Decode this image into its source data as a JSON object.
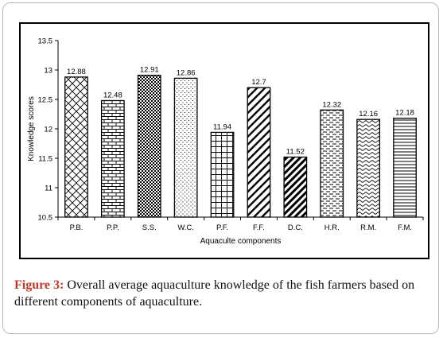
{
  "chart_data": {
    "type": "bar",
    "title": "",
    "xlabel": "Aquaculte components",
    "ylabel": "Knowledge scores",
    "ylim": [
      10.5,
      13.5
    ],
    "yticks": [
      "10.5",
      "11",
      "11.5",
      "12",
      "12.5",
      "13",
      "13.5"
    ],
    "categories": [
      "P.B.",
      "P.P.",
      "S.S.",
      "W.C.",
      "P.F.",
      "F.F.",
      "D.C.",
      "H.R.",
      "R.M.",
      "F.M."
    ],
    "values": [
      12.88,
      12.48,
      12.91,
      12.86,
      11.94,
      12.7,
      11.52,
      12.32,
      12.16,
      12.18
    ],
    "value_labels": [
      "12.88",
      "12.48",
      "12.91",
      "12.86",
      "11.94",
      "12.7",
      "11.52",
      "12.32",
      "12.16",
      "12.18"
    ],
    "patterns": [
      "lattice",
      "brick",
      "checker",
      "dots",
      "grid",
      "diagonal-wide",
      "diagonal-thick",
      "dash-horizontal",
      "wave",
      "horizontal"
    ],
    "grid": false,
    "legend": "none"
  },
  "caption": {
    "label": "Figure 3:",
    "text": " Overall average aquaculture knowledge of the fish farmers based on different components of aquaculture."
  }
}
